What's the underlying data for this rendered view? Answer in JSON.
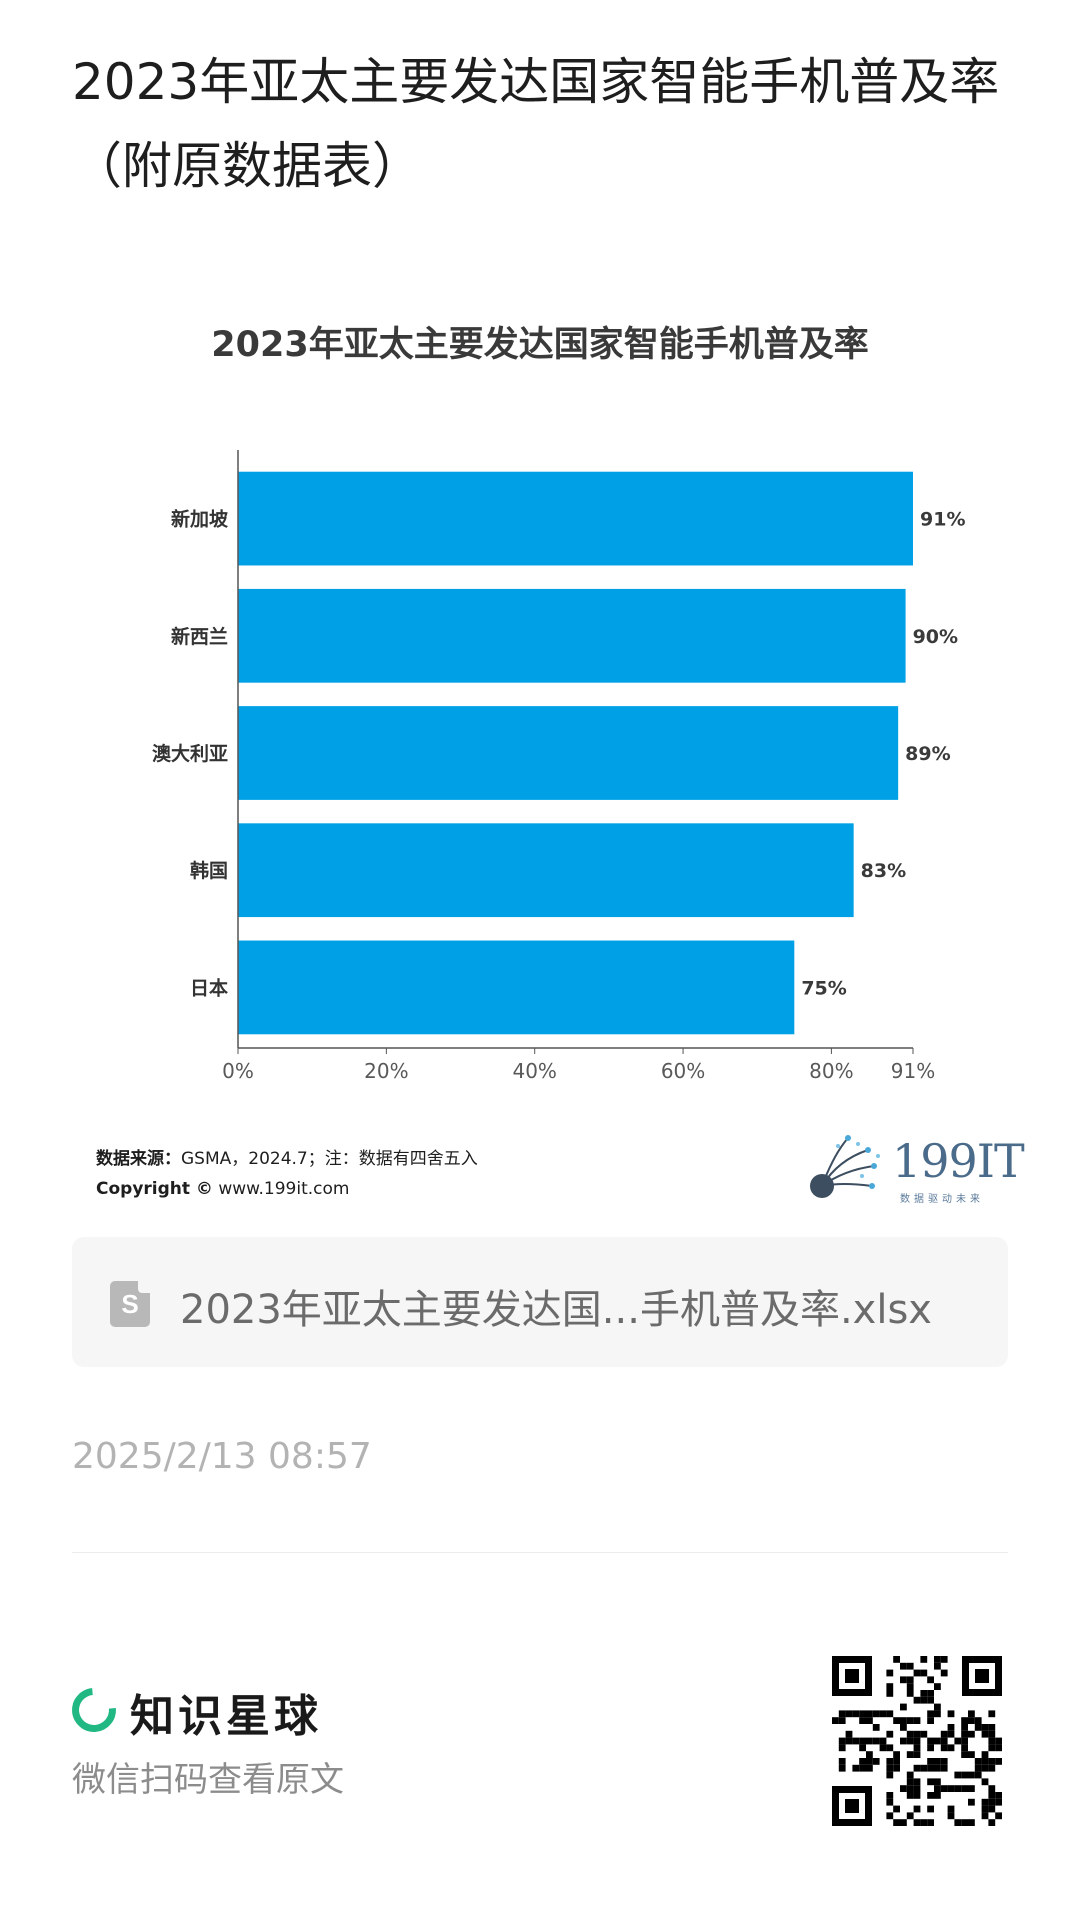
{
  "post": {
    "title": "2023年亚太主要发达国家智能手机普及率（附原数据表）"
  },
  "chart_data": {
    "type": "bar",
    "orientation": "horizontal",
    "title": "2023年亚太主要发达国家智能手机普及率",
    "categories": [
      "新加坡",
      "新西兰",
      "澳大利亚",
      "韩国",
      "日本"
    ],
    "values": [
      91,
      90,
      89,
      83,
      75
    ],
    "value_labels": [
      "91%",
      "90%",
      "89%",
      "83%",
      "75%"
    ],
    "unit": "%",
    "xlim": [
      0,
      91
    ],
    "x_ticks": [
      0,
      20,
      40,
      60,
      80,
      91
    ],
    "x_tick_labels": [
      "0%",
      "20%",
      "40%",
      "60%",
      "80%",
      "91%"
    ],
    "bar_color": "#00a0e6",
    "grid": false,
    "legend": "none"
  },
  "source": {
    "label": "数据来源：",
    "text": "GSMA，2024.7；注：数据有四舍五入",
    "copyright_label": "Copyright ©",
    "copyright_url": "www.199it.com"
  },
  "logo": {
    "name": "199IT",
    "tagline": "数据驱动未来"
  },
  "attachment": {
    "icon": "spreadsheet-file-icon",
    "icon_letter": "S",
    "file_name": "2023年亚太主要发达国...手机普及率.xlsx"
  },
  "timestamp": "2025/2/13 08:57",
  "footer": {
    "brand_name": "知识星球",
    "brand_color": "#21b883",
    "scan_text": "微信扫码查看原文",
    "qr_icon": "qr-code-icon"
  }
}
